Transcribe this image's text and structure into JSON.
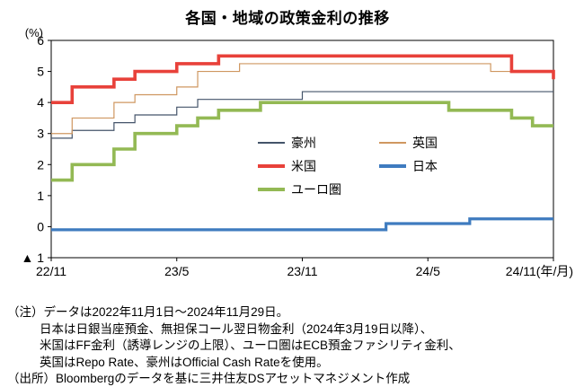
{
  "title": "各国・地域の政策金利の推移",
  "y_axis_unit": "(%)",
  "chart_data": {
    "type": "line",
    "step": true,
    "title": "各国・地域の政策金利の推移",
    "ylabel": "(%)",
    "xlabel": "(年/月)",
    "ylim": [
      -1,
      6
    ],
    "grid": false,
    "legend_position": "inside-right-middle",
    "x": [
      "22/11",
      "22/12",
      "23/1",
      "23/2",
      "23/3",
      "23/4",
      "23/5",
      "23/6",
      "23/7",
      "23/8",
      "23/9",
      "23/10",
      "23/11",
      "23/12",
      "24/1",
      "24/2",
      "24/3",
      "24/4",
      "24/5",
      "24/6",
      "24/7",
      "24/8",
      "24/9",
      "24/10",
      "24/11"
    ],
    "y_ticks": [
      {
        "v": 6,
        "label": "6"
      },
      {
        "v": 5,
        "label": "5"
      },
      {
        "v": 4,
        "label": "4"
      },
      {
        "v": 3,
        "label": "3"
      },
      {
        "v": 2,
        "label": "2"
      },
      {
        "v": 1,
        "label": "1"
      },
      {
        "v": 0,
        "label": "0"
      },
      {
        "v": -1,
        "label": "▲ 1"
      }
    ],
    "x_ticks": [
      {
        "index": 0,
        "label": "22/11"
      },
      {
        "index": 6,
        "label": "23/5"
      },
      {
        "index": 12,
        "label": "23/11"
      },
      {
        "index": 18,
        "label": "24/5"
      },
      {
        "index": 24,
        "label": "24/11(年/月)"
      }
    ],
    "series": [
      {
        "name": "豪州",
        "color": "#44546a",
        "width": 1.2,
        "values": [
          2.85,
          3.1,
          3.1,
          3.35,
          3.6,
          3.6,
          3.85,
          4.1,
          4.1,
          4.1,
          4.1,
          4.1,
          4.35,
          4.35,
          4.35,
          4.35,
          4.35,
          4.35,
          4.35,
          4.35,
          4.35,
          4.35,
          4.35,
          4.35,
          4.35
        ]
      },
      {
        "name": "英国",
        "color": "#cf9760",
        "width": 1.2,
        "values": [
          3.0,
          3.5,
          3.5,
          4.0,
          4.25,
          4.25,
          4.5,
          5.0,
          5.0,
          5.25,
          5.25,
          5.25,
          5.25,
          5.25,
          5.25,
          5.25,
          5.25,
          5.25,
          5.25,
          5.25,
          5.25,
          5.0,
          5.0,
          5.0,
          4.75
        ]
      },
      {
        "name": "米国",
        "color": "#e8413a",
        "width": 3.6,
        "values": [
          4.0,
          4.5,
          4.5,
          4.75,
          5.0,
          5.0,
          5.25,
          5.25,
          5.5,
          5.5,
          5.5,
          5.5,
          5.5,
          5.5,
          5.5,
          5.5,
          5.5,
          5.5,
          5.5,
          5.5,
          5.5,
          5.5,
          5.0,
          5.0,
          4.75
        ]
      },
      {
        "name": "日本",
        "color": "#3e7bbf",
        "width": 3.2,
        "values": [
          -0.1,
          -0.1,
          -0.1,
          -0.1,
          -0.1,
          -0.1,
          -0.1,
          -0.1,
          -0.1,
          -0.1,
          -0.1,
          -0.1,
          -0.1,
          -0.1,
          -0.1,
          -0.1,
          0.1,
          0.1,
          0.1,
          0.1,
          0.25,
          0.25,
          0.25,
          0.25,
          0.25
        ]
      },
      {
        "name": "ユーロ圏",
        "color": "#93b954",
        "width": 3.6,
        "values": [
          1.5,
          2.0,
          2.0,
          2.5,
          3.0,
          3.0,
          3.25,
          3.5,
          3.75,
          3.75,
          4.0,
          4.0,
          4.0,
          4.0,
          4.0,
          4.0,
          4.0,
          4.0,
          4.0,
          3.75,
          3.75,
          3.75,
          3.5,
          3.25,
          3.25
        ]
      }
    ]
  },
  "notes": {
    "lines": [
      "（注）データは2022年11月1日～2024年11月29日。",
      "日本は日銀当座預金、無担保コール翌日物金利（2024年3月19日以降）、",
      "米国はFF金利（誘導レンジの上限）、ユーロ圏はECB預金ファシリティ金利、",
      "英国はRepo Rate、豪州はOfficial Cash Rateを使用。",
      "（出所）Bloombergのデータを基に三井住友DSアセットマネジメント作成"
    ]
  }
}
